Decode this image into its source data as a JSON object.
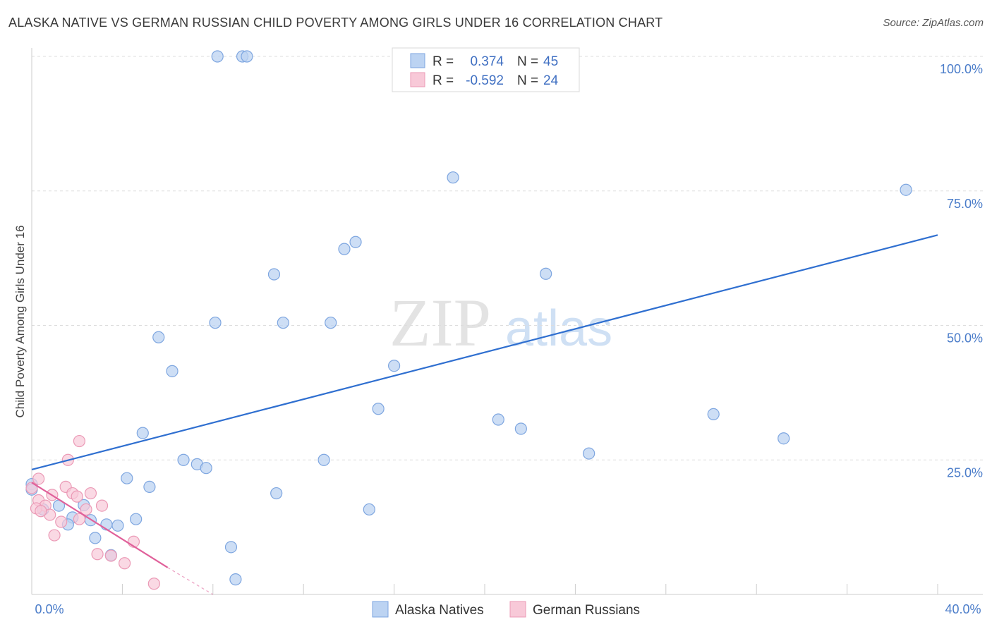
{
  "header": {
    "title": "ALASKA NATIVE VS GERMAN RUSSIAN CHILD POVERTY AMONG GIRLS UNDER 16 CORRELATION CHART",
    "source": "Source: ZipAtlas.com"
  },
  "watermark": {
    "part1": "ZIP",
    "part2": "atlas"
  },
  "legend": {
    "rows": [
      {
        "r_label": "R =",
        "r_value": "0.374",
        "n_label": "N =",
        "n_value": "45",
        "color": "#8fb4e8"
      },
      {
        "r_label": "R =",
        "r_value": "-0.592",
        "n_label": "N =",
        "n_value": "24",
        "color": "#f2a9c0"
      }
    ]
  },
  "colors": {
    "series1_fill": "#bcd3f2",
    "series1_stroke": "#7ea6e0",
    "series1_line": "#2f6fd0",
    "series2_fill": "#f8c9d8",
    "series2_stroke": "#eb9ab6",
    "series2_line": "#e0609a",
    "axis_tick_text": "#4a7cc9",
    "grid": "#dddddd"
  },
  "chart_data": {
    "type": "scatter",
    "title": "ALASKA NATIVE VS GERMAN RUSSIAN CHILD POVERTY AMONG GIRLS UNDER 16 CORRELATION CHART",
    "xlabel": "",
    "ylabel": "Child Poverty Among Girls Under 16",
    "xlim": [
      0,
      40
    ],
    "ylim": [
      0,
      100
    ],
    "x_tick_labels": {
      "min": "0.0%",
      "max": "40.0%"
    },
    "y_tick_labels": [
      "25.0%",
      "50.0%",
      "75.0%",
      "100.0%"
    ],
    "y_tick_values": [
      25,
      50,
      75,
      100
    ],
    "series": [
      {
        "name": "Alaska Natives",
        "points": [
          [
            8.2,
            100
          ],
          [
            9.3,
            100
          ],
          [
            9.5,
            100
          ],
          [
            18.6,
            77.5
          ],
          [
            38.6,
            75.2
          ],
          [
            13.8,
            64.2
          ],
          [
            14.3,
            65.5
          ],
          [
            10.7,
            59.5
          ],
          [
            22.7,
            59.6
          ],
          [
            8.1,
            50.5
          ],
          [
            11.1,
            50.5
          ],
          [
            13.2,
            50.5
          ],
          [
            5.6,
            47.8
          ],
          [
            6.2,
            41.5
          ],
          [
            16.0,
            42.5
          ],
          [
            15.3,
            34.5
          ],
          [
            20.6,
            32.5
          ],
          [
            30.1,
            33.5
          ],
          [
            21.6,
            30.8
          ],
          [
            4.9,
            30.0
          ],
          [
            33.2,
            29.0
          ],
          [
            6.7,
            25.0
          ],
          [
            7.3,
            24.2
          ],
          [
            7.7,
            23.5
          ],
          [
            12.9,
            25.0
          ],
          [
            24.6,
            26.2
          ],
          [
            4.2,
            21.6
          ],
          [
            5.2,
            20.0
          ],
          [
            0.0,
            20.5
          ],
          [
            10.8,
            18.8
          ],
          [
            1.2,
            16.5
          ],
          [
            2.3,
            16.6
          ],
          [
            14.9,
            15.8
          ],
          [
            0.5,
            15.8
          ],
          [
            1.8,
            14.3
          ],
          [
            4.6,
            14.0
          ],
          [
            2.6,
            13.8
          ],
          [
            1.6,
            13.0
          ],
          [
            3.3,
            13.0
          ],
          [
            3.8,
            12.8
          ],
          [
            2.8,
            10.5
          ],
          [
            8.8,
            8.8
          ],
          [
            3.5,
            7.3
          ],
          [
            9.0,
            2.8
          ],
          [
            0.0,
            19.5
          ]
        ],
        "trend": {
          "x0": 0,
          "y0": 23.2,
          "x1": 40,
          "y1": 66.8
        }
      },
      {
        "name": "German Russians",
        "points": [
          [
            2.1,
            28.5
          ],
          [
            1.6,
            25.0
          ],
          [
            0.3,
            21.5
          ],
          [
            1.5,
            20.0
          ],
          [
            0.0,
            19.8
          ],
          [
            1.8,
            18.8
          ],
          [
            2.6,
            18.8
          ],
          [
            0.9,
            18.5
          ],
          [
            0.3,
            17.5
          ],
          [
            2.0,
            18.2
          ],
          [
            3.1,
            16.5
          ],
          [
            2.4,
            15.8
          ],
          [
            0.6,
            16.5
          ],
          [
            0.2,
            16.0
          ],
          [
            0.8,
            14.8
          ],
          [
            1.3,
            13.5
          ],
          [
            2.1,
            14.0
          ],
          [
            1.0,
            11.0
          ],
          [
            4.5,
            9.8
          ],
          [
            2.9,
            7.5
          ],
          [
            3.5,
            7.2
          ],
          [
            4.1,
            5.8
          ],
          [
            5.4,
            2.0
          ],
          [
            0.4,
            15.5
          ]
        ],
        "trend": {
          "x0": 0,
          "y0": 20.8,
          "x1": 6.0,
          "y1": 5.0,
          "dash_to_x": 8.0,
          "dash_to_y": 0
        }
      }
    ]
  },
  "bottom_legend": {
    "items": [
      {
        "label": "Alaska Natives"
      },
      {
        "label": "German Russians"
      }
    ]
  }
}
